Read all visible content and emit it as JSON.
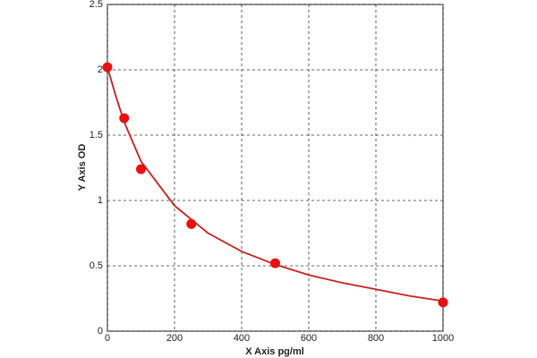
{
  "chart_data": {
    "type": "scatter",
    "xlabel": "X Axis pg/ml",
    "ylabel": "Y Axis OD",
    "series": [
      {
        "kind": "points",
        "color": "#e8110f",
        "x": [
          0,
          50,
          100,
          250,
          500,
          1000
        ],
        "values": [
          2.02,
          1.63,
          1.24,
          0.82,
          0.52,
          0.22
        ]
      },
      {
        "kind": "curve",
        "color": "#c8201c",
        "x": [
          0,
          25,
          50,
          100,
          200,
          300,
          400,
          500,
          600,
          700,
          800,
          900,
          1000
        ],
        "values": [
          2.02,
          1.8,
          1.6,
          1.3,
          0.96,
          0.75,
          0.61,
          0.51,
          0.43,
          0.37,
          0.32,
          0.27,
          0.23
        ]
      }
    ],
    "xlim": [
      0,
      1000
    ],
    "xticks": [
      0,
      200,
      400,
      600,
      800,
      1000
    ],
    "ylim": [
      0,
      2.5
    ],
    "yticks": [
      0,
      0.5,
      1,
      1.5,
      2,
      2.5
    ],
    "grid": true
  }
}
